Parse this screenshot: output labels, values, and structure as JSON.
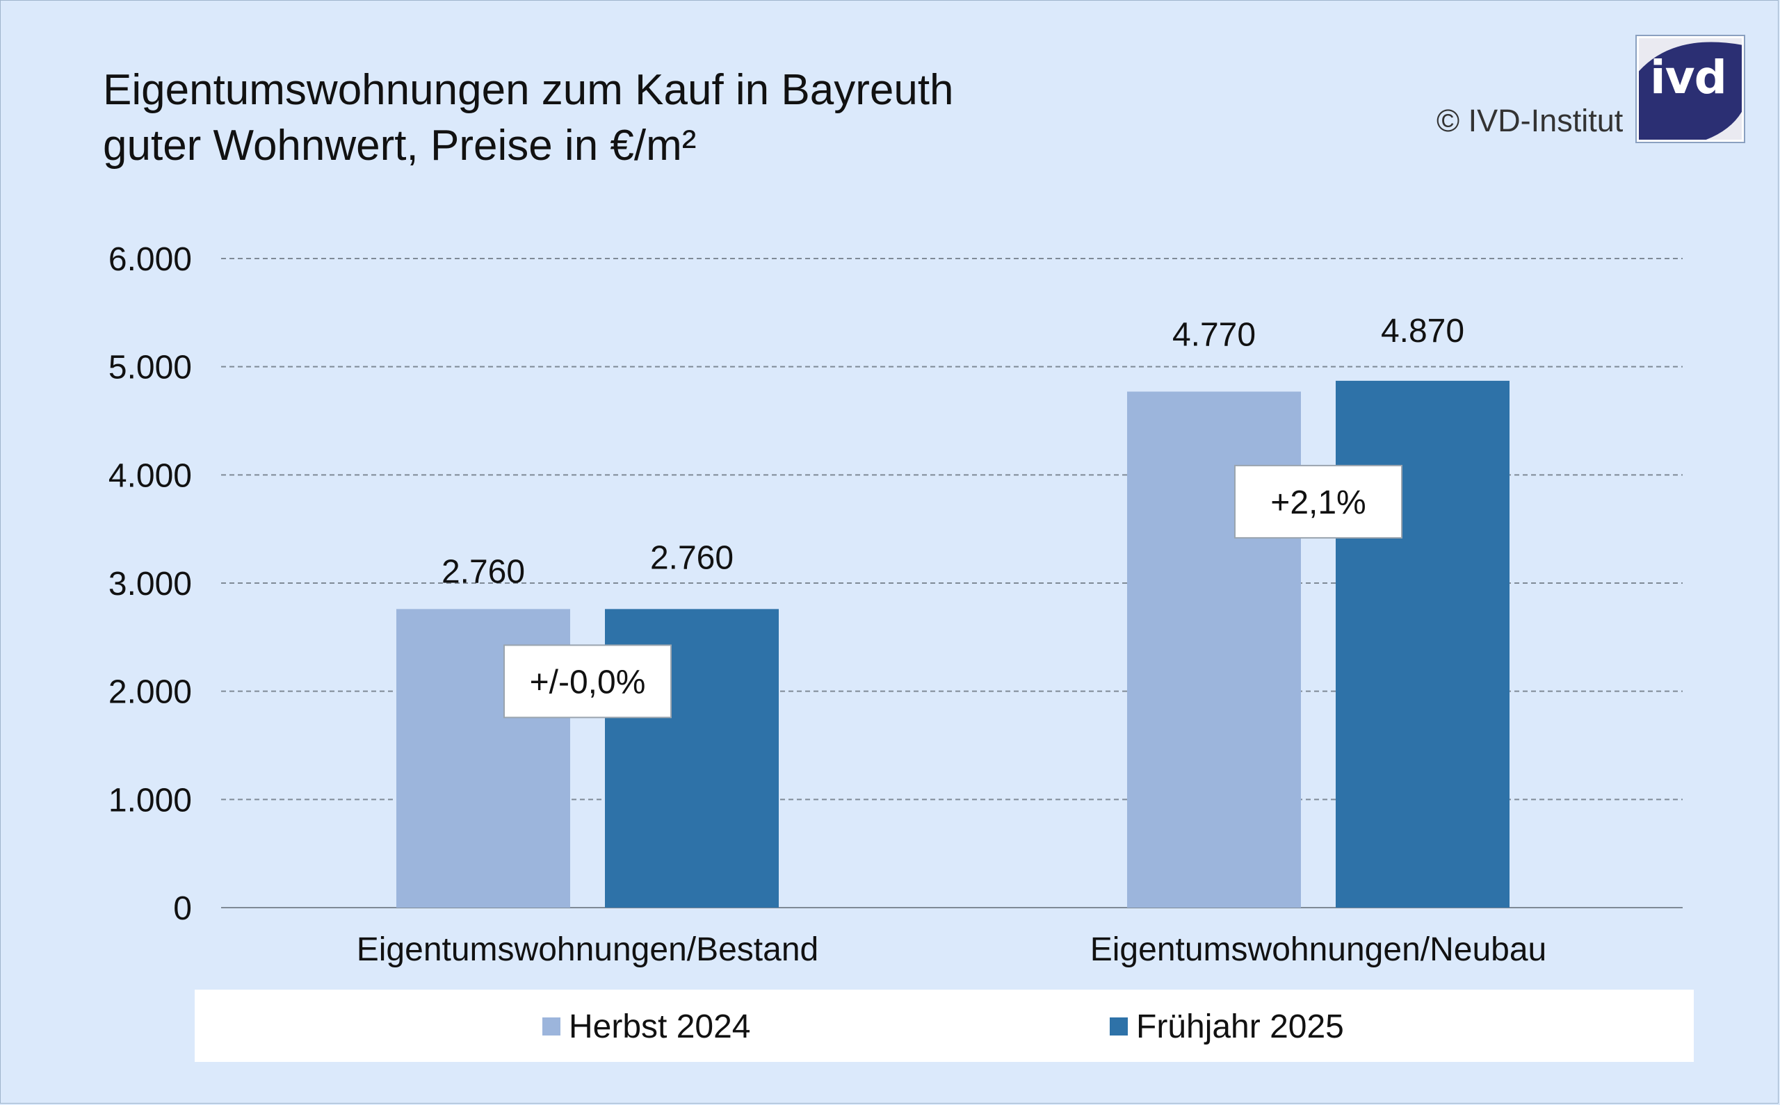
{
  "title_line1": "Eigentumswohnungen zum Kauf in Bayreuth",
  "title_line2": "guter Wohnwert, Preise in €/m²",
  "copyright": "© IVD-Institut",
  "logo_text": "ivd",
  "colors": {
    "background": "#dbe9fb",
    "series1": "#9cb5dc",
    "series2": "#2e72a8",
    "logo": "#2b2f73"
  },
  "chart_data": {
    "type": "bar",
    "categories": [
      "Eigentumswohnungen/Bestand",
      "Eigentumswohnungen/Neubau"
    ],
    "series": [
      {
        "name": "Herbst 2024",
        "values": [
          2760,
          4770
        ],
        "labels": [
          "2.760",
          "4.770"
        ]
      },
      {
        "name": "Frühjahr 2025",
        "values": [
          2760,
          4870
        ],
        "labels": [
          "2.760",
          "4.870"
        ]
      }
    ],
    "change_labels": [
      "+/-0,0%",
      "+2,1%"
    ],
    "ylim": [
      0,
      6000
    ],
    "yticks": [
      0,
      1000,
      2000,
      3000,
      4000,
      5000,
      6000
    ],
    "ytick_labels": [
      "0",
      "1.000",
      "2.000",
      "3.000",
      "4.000",
      "5.000",
      "6.000"
    ],
    "grid": true,
    "legend_position": "bottom"
  }
}
